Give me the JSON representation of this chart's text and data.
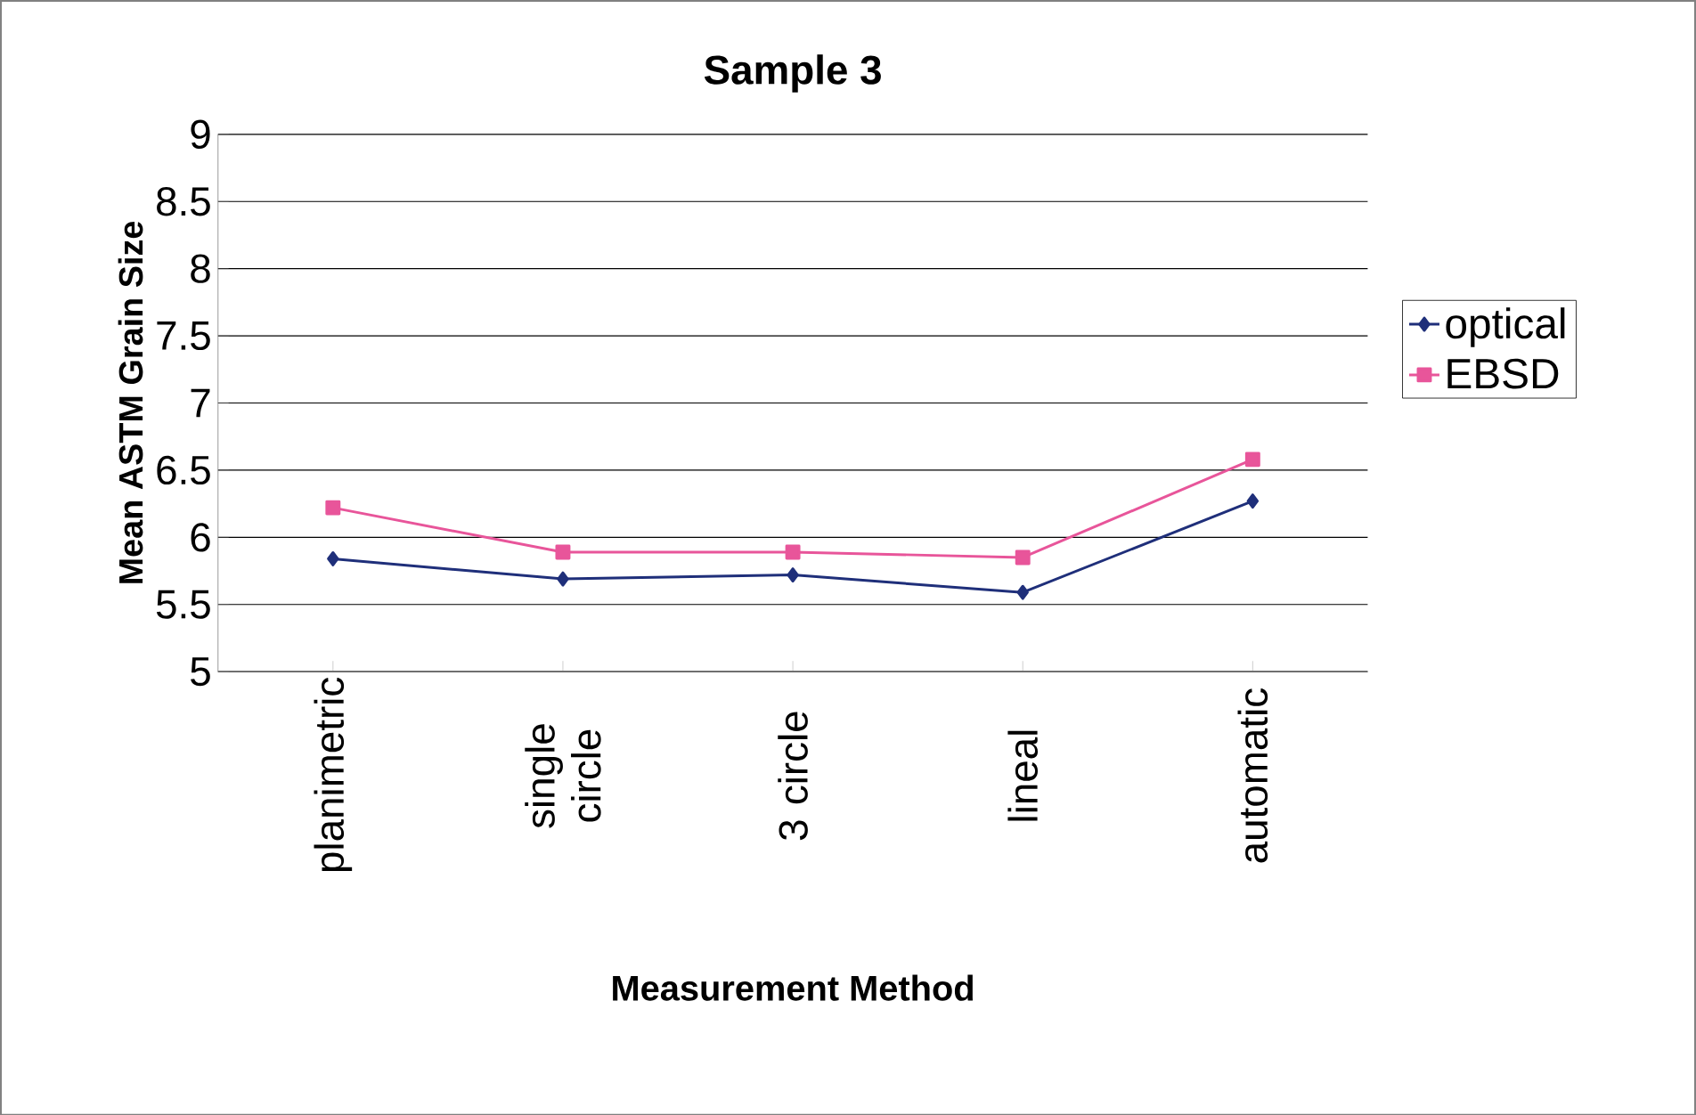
{
  "chart_data": {
    "type": "line",
    "title": "Sample 3",
    "xlabel": "Measurement Method",
    "ylabel": "Mean ASTM Grain Size",
    "categories": [
      "planimetric",
      "single circle",
      "3 circle",
      "lineal",
      "automatic"
    ],
    "series": [
      {
        "name": "optical",
        "color": "#1f2f7a",
        "marker": "diamond",
        "values": [
          5.84,
          5.69,
          5.72,
          5.59,
          6.27
        ]
      },
      {
        "name": "EBSD",
        "color": "#e8559a",
        "marker": "square",
        "values": [
          6.22,
          5.89,
          5.89,
          5.85,
          6.58
        ]
      }
    ],
    "ylim": [
      5,
      9
    ],
    "yticks": [
      5,
      5.5,
      6,
      6.5,
      7,
      7.5,
      8,
      8.5,
      9
    ],
    "grid": "y",
    "legend": "right"
  }
}
